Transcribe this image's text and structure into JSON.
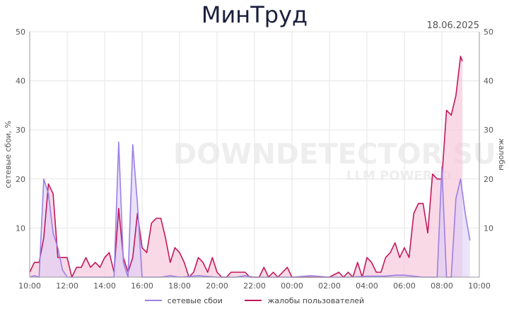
{
  "title": "МинТруд",
  "date": "18.06.2025",
  "watermark": {
    "main": "DOWNDETECTOR SU",
    "sub": "LLM POWERED"
  },
  "colors": {
    "net": "#9b7fe6",
    "complaints": "#c2185b",
    "complaints_fill": "#f8c5d8",
    "net_fill": "#d9ccf5",
    "grid": "#e6e6e6"
  },
  "chart_data": {
    "type": "area",
    "ylabel": "сетевые сбои, %",
    "ylabel_right": "жалобы",
    "ylim": [
      0,
      50
    ],
    "ylim_right": [
      0,
      50
    ],
    "yticks": [
      10,
      20,
      30,
      40,
      50
    ],
    "x_range_hours": [
      0,
      24
    ],
    "xticks": [
      {
        "h": 0,
        "label": "10:00"
      },
      {
        "h": 2,
        "label": "12:00"
      },
      {
        "h": 4,
        "label": "14:00"
      },
      {
        "h": 6,
        "label": "16:00"
      },
      {
        "h": 8,
        "label": "18:00"
      },
      {
        "h": 10,
        "label": "20:00"
      },
      {
        "h": 12,
        "label": "22:00"
      },
      {
        "h": 14,
        "label": "00:00"
      },
      {
        "h": 16,
        "label": "02:00"
      },
      {
        "h": 18,
        "label": "04:00"
      },
      {
        "h": 20,
        "label": "06:00"
      },
      {
        "h": 22,
        "label": "08:00"
      },
      {
        "h": 24,
        "label": "10:00"
      }
    ],
    "legend_position": "bottom",
    "series": [
      {
        "name": "сетевые сбои",
        "points": [
          [
            0,
            0
          ],
          [
            0.25,
            0.3
          ],
          [
            0.5,
            0
          ],
          [
            0.75,
            20
          ],
          [
            1.0,
            17
          ],
          [
            1.25,
            9
          ],
          [
            1.5,
            6
          ],
          [
            1.75,
            1.5
          ],
          [
            2.0,
            0
          ],
          [
            2.5,
            0
          ],
          [
            3,
            0
          ],
          [
            4,
            0
          ],
          [
            4.5,
            0
          ],
          [
            4.75,
            27.5
          ],
          [
            5.0,
            3
          ],
          [
            5.25,
            0
          ],
          [
            5.5,
            27
          ],
          [
            5.75,
            15
          ],
          [
            6.0,
            0
          ],
          [
            7,
            0
          ],
          [
            7.5,
            0.3
          ],
          [
            8,
            0
          ],
          [
            9,
            0.3
          ],
          [
            10,
            0
          ],
          [
            11,
            0
          ],
          [
            11.5,
            0.3
          ],
          [
            12,
            0
          ],
          [
            13,
            0
          ],
          [
            14,
            0
          ],
          [
            15,
            0.3
          ],
          [
            16,
            0
          ],
          [
            17,
            0
          ],
          [
            18,
            0.2
          ],
          [
            19,
            0.2
          ],
          [
            19.5,
            0.4
          ],
          [
            20,
            0.4
          ],
          [
            21,
            0
          ],
          [
            21.75,
            0
          ],
          [
            22.0,
            22.5
          ],
          [
            22.25,
            0
          ],
          [
            22.5,
            0
          ],
          [
            22.75,
            16
          ],
          [
            23.0,
            20
          ],
          [
            23.25,
            13
          ],
          [
            23.5,
            7.5
          ]
        ]
      },
      {
        "name": "жалобы пользователей",
        "points": [
          [
            0,
            1
          ],
          [
            0.25,
            3
          ],
          [
            0.5,
            3
          ],
          [
            0.75,
            8
          ],
          [
            1.0,
            19
          ],
          [
            1.25,
            17
          ],
          [
            1.5,
            4
          ],
          [
            1.75,
            4
          ],
          [
            2.0,
            4
          ],
          [
            2.25,
            0
          ],
          [
            2.5,
            2
          ],
          [
            2.75,
            2
          ],
          [
            3.0,
            4
          ],
          [
            3.25,
            2
          ],
          [
            3.5,
            3
          ],
          [
            3.75,
            2
          ],
          [
            4.0,
            4
          ],
          [
            4.25,
            5
          ],
          [
            4.5,
            1
          ],
          [
            4.75,
            14
          ],
          [
            5.0,
            4
          ],
          [
            5.25,
            1
          ],
          [
            5.5,
            4
          ],
          [
            5.75,
            13
          ],
          [
            6.0,
            6
          ],
          [
            6.25,
            5
          ],
          [
            6.5,
            11
          ],
          [
            6.75,
            12
          ],
          [
            7.0,
            12
          ],
          [
            7.25,
            8
          ],
          [
            7.5,
            3
          ],
          [
            7.75,
            6
          ],
          [
            8.0,
            5
          ],
          [
            8.25,
            3
          ],
          [
            8.5,
            0
          ],
          [
            8.75,
            1
          ],
          [
            9.0,
            4
          ],
          [
            9.25,
            3
          ],
          [
            9.5,
            1
          ],
          [
            9.75,
            4
          ],
          [
            10.0,
            1
          ],
          [
            10.25,
            0
          ],
          [
            10.5,
            0
          ],
          [
            10.75,
            1
          ],
          [
            11.0,
            1
          ],
          [
            11.25,
            1
          ],
          [
            11.5,
            1
          ],
          [
            11.75,
            0
          ],
          [
            12.25,
            0
          ],
          [
            12.5,
            2
          ],
          [
            12.75,
            0
          ],
          [
            13.0,
            1
          ],
          [
            13.25,
            0
          ],
          [
            13.5,
            1
          ],
          [
            13.75,
            2
          ],
          [
            14.0,
            0
          ],
          [
            14.25,
            0
          ],
          [
            15,
            0
          ],
          [
            15.5,
            0
          ],
          [
            16.0,
            0
          ],
          [
            16.5,
            1
          ],
          [
            16.75,
            0
          ],
          [
            17.0,
            1
          ],
          [
            17.25,
            0
          ],
          [
            17.5,
            3
          ],
          [
            17.75,
            0
          ],
          [
            18.0,
            4
          ],
          [
            18.25,
            3
          ],
          [
            18.5,
            1
          ],
          [
            18.75,
            1
          ],
          [
            19.0,
            4
          ],
          [
            19.25,
            5
          ],
          [
            19.5,
            7
          ],
          [
            19.75,
            4
          ],
          [
            20.0,
            6
          ],
          [
            20.25,
            4
          ],
          [
            20.5,
            13
          ],
          [
            20.75,
            15
          ],
          [
            21.0,
            15
          ],
          [
            21.25,
            9
          ],
          [
            21.5,
            21
          ],
          [
            21.75,
            20
          ],
          [
            22.0,
            20
          ],
          [
            22.25,
            34
          ],
          [
            22.5,
            33
          ],
          [
            22.75,
            37
          ],
          [
            23.0,
            45
          ],
          [
            23.1,
            44
          ]
        ]
      }
    ]
  }
}
